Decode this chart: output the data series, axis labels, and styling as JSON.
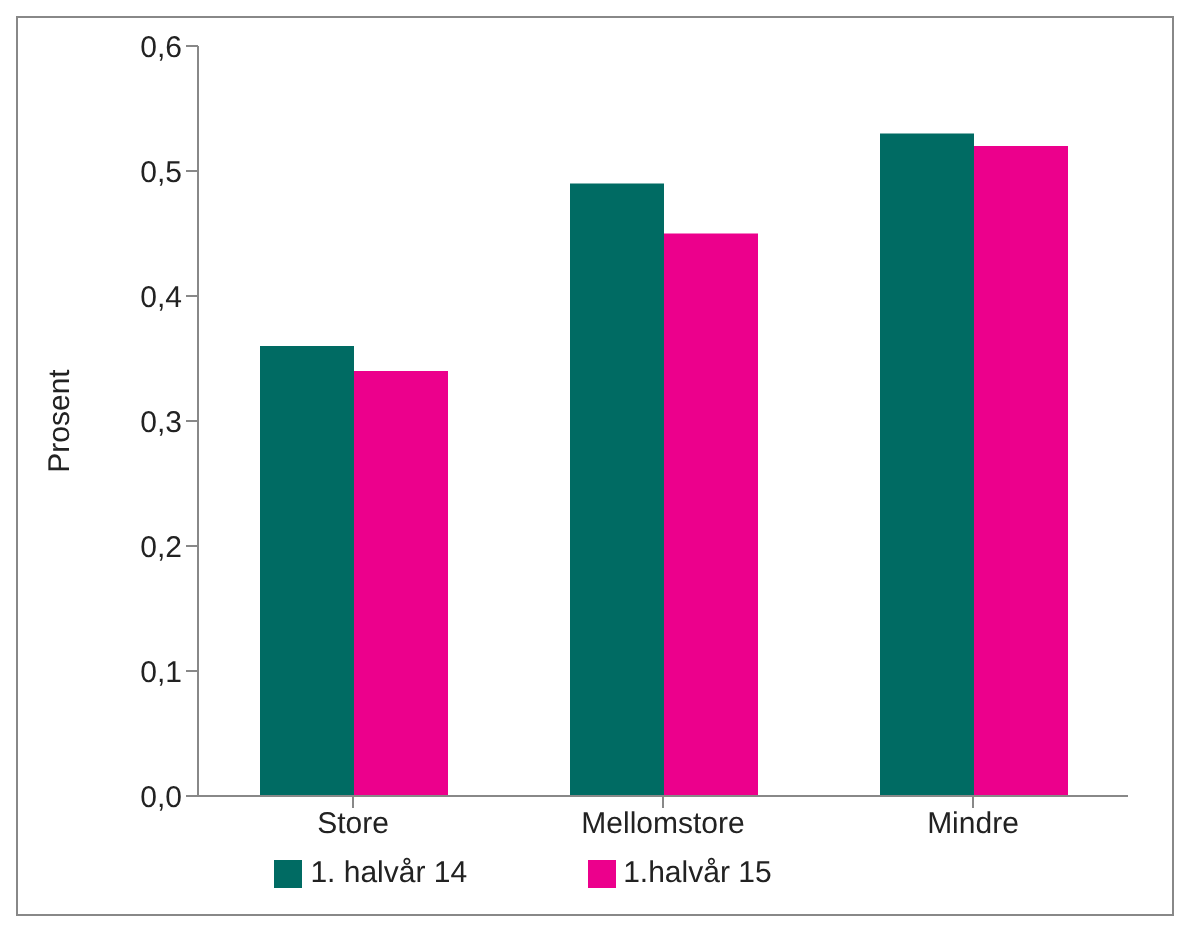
{
  "chart_data": {
    "type": "bar",
    "ylabel": "Prosent",
    "categories": [
      "Store",
      "Mellomstore",
      "Mindre"
    ],
    "series": [
      {
        "name": "1. halvår 14",
        "color": "#006b63",
        "values": [
          0.36,
          0.49,
          0.53
        ]
      },
      {
        "name": "1.halvår 15",
        "color": "#ec008c",
        "values": [
          0.34,
          0.45,
          0.52
        ]
      }
    ],
    "ylim": [
      0,
      0.6
    ],
    "yticks": [
      {
        "value": 0,
        "label": "0,0"
      },
      {
        "value": 0.1,
        "label": "0,1"
      },
      {
        "value": 0.2,
        "label": "0,2"
      },
      {
        "value": 0.3,
        "label": "0,3"
      },
      {
        "value": 0.4,
        "label": "0,4"
      },
      {
        "value": 0.5,
        "label": "0,5"
      },
      {
        "value": 0.6,
        "label": "0,6"
      }
    ],
    "grid": false,
    "legend": "bottom"
  }
}
